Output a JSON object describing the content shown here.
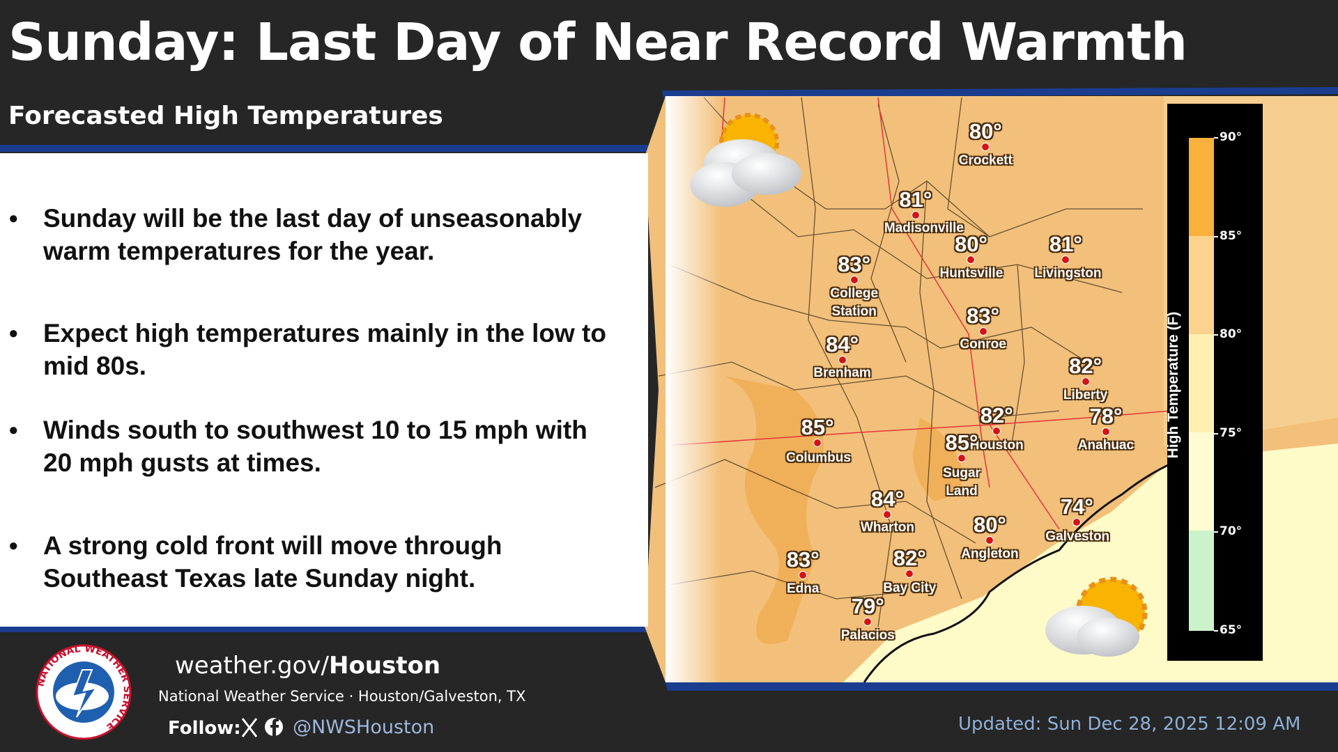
{
  "header": {
    "title": "Sunday: Last Day of Near Record Warmth",
    "subtitle": "Forecasted High Temperatures"
  },
  "bullets": [
    "Sunday will be the last day of unseasonably warm temperatures for the year.",
    "Expect high temperatures mainly in the low to mid 80s.",
    "Winds south to southwest 10 to 15 mph with 20 mph gusts at times.",
    "A strong cold front will move through Southeast Texas late Sunday night."
  ],
  "map": {
    "cities": [
      {
        "temp": "80°",
        "name": "Crockett"
      },
      {
        "temp": "81°",
        "name": "Madisonville"
      },
      {
        "temp": "80°",
        "name": "Huntsville"
      },
      {
        "temp": "81°",
        "name": "Livingston"
      },
      {
        "temp": "83°",
        "name": "College Station"
      },
      {
        "temp": "83°",
        "name": "Conroe"
      },
      {
        "temp": "84°",
        "name": "Brenham"
      },
      {
        "temp": "82°",
        "name": "Liberty"
      },
      {
        "temp": "82°",
        "name": "Houston"
      },
      {
        "temp": "78°",
        "name": "Anahuac"
      },
      {
        "temp": "85°",
        "name": "Columbus"
      },
      {
        "temp": "85°",
        "name": "Sugar Land"
      },
      {
        "temp": "84°",
        "name": "Wharton"
      },
      {
        "temp": "80°",
        "name": "Angleton"
      },
      {
        "temp": "74°",
        "name": "Galveston"
      },
      {
        "temp": "83°",
        "name": "Edna"
      },
      {
        "temp": "82°",
        "name": "Bay City"
      },
      {
        "temp": "79°",
        "name": "Palacios"
      }
    ],
    "legend": {
      "title": "High Temperature (F)",
      "ticks": [
        "90°",
        "85°",
        "80°",
        "75°",
        "70°",
        "65°"
      ]
    }
  },
  "footer": {
    "logo_text": "NATIONAL WEATHER SERVICE",
    "site_prefix": "weather.gov/",
    "site_office": "Houston",
    "office_line": "National Weather Service · Houston/Galveston, TX",
    "follow": "Follow:",
    "handle": "@NWSHouston",
    "updated": "Updated: Sun Dec 28, 2025 12:09 AM"
  }
}
